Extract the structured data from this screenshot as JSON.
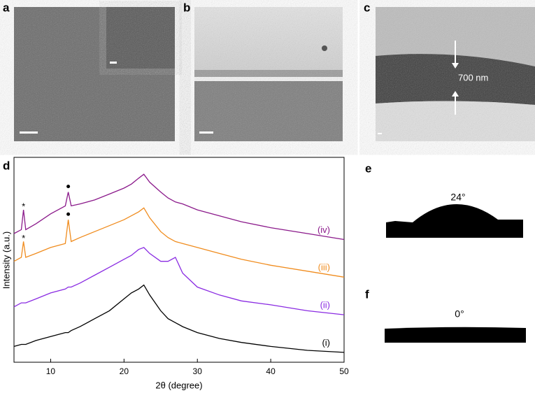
{
  "panels": [
    "a",
    "b",
    "c",
    "d",
    "e",
    "f"
  ],
  "image_c": {
    "annotation": "700 nm"
  },
  "contact_angles": {
    "e": "24°",
    "f": "0°"
  },
  "chart_data": {
    "type": "line",
    "xlabel": "2θ (degree)",
    "ylabel": "Intensity (a.u.)",
    "x": [
      5,
      6,
      6.3,
      6.6,
      8,
      10,
      12,
      12.4,
      12.8,
      14,
      16,
      18,
      20,
      21,
      22,
      22.7,
      23.5,
      25,
      26,
      27,
      28,
      30,
      33,
      36,
      40,
      45,
      50
    ],
    "xlim": [
      5,
      50
    ],
    "xticks": [
      10,
      20,
      30,
      40,
      50
    ],
    "ylim": [
      0,
      100
    ],
    "annotations": [
      "*",
      "*"
    ],
    "series": [
      {
        "name": "(i)",
        "color": "#000000",
        "values": [
          8,
          9,
          9,
          9,
          11,
          13,
          15,
          15,
          16,
          18,
          22,
          26,
          32,
          35,
          37,
          39,
          34,
          26,
          22,
          20,
          18,
          15,
          12,
          10,
          8,
          6,
          5
        ]
      },
      {
        "name": "(ii)",
        "color": "#8a2be2",
        "values": [
          28,
          30,
          30,
          30,
          32,
          35,
          37,
          38,
          38,
          40,
          44,
          48,
          52,
          54,
          57,
          58,
          55,
          51,
          51,
          53,
          45,
          38,
          34,
          31,
          29,
          26,
          24
        ]
      },
      {
        "name": "(iii)",
        "color": "#f08c1e",
        "values": [
          51,
          53,
          61,
          53,
          55,
          58,
          60,
          72,
          61,
          63,
          66,
          69,
          72,
          74,
          76,
          78,
          73,
          66,
          63,
          61,
          60,
          58,
          55,
          52,
          49,
          46,
          43
        ]
      },
      {
        "name": "(iv)",
        "color": "#8b1a8b",
        "values": [
          65,
          67,
          77,
          67,
          70,
          75,
          79,
          86,
          79,
          80,
          82,
          85,
          88,
          90,
          93,
          95,
          91,
          86,
          83,
          81,
          80,
          77,
          74,
          71,
          68,
          65,
          62
        ]
      }
    ]
  }
}
